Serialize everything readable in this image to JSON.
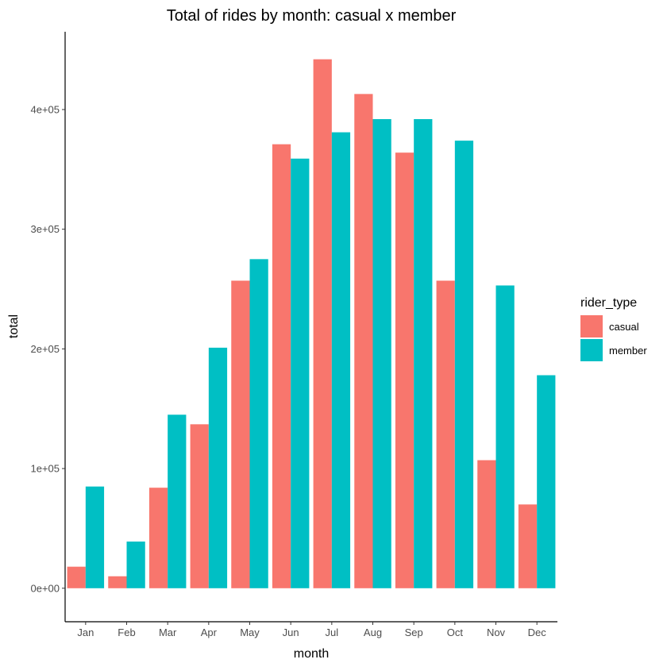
{
  "chart_data": {
    "type": "bar",
    "title": "Total of rides by month: casual x member",
    "xlabel": "month",
    "ylabel": "total",
    "categories": [
      "Jan",
      "Feb",
      "Mar",
      "Apr",
      "May",
      "Jun",
      "Jul",
      "Aug",
      "Sep",
      "Oct",
      "Nov",
      "Dec"
    ],
    "series": [
      {
        "name": "casual",
        "color": "#F8766D",
        "values": [
          18000,
          10000,
          84000,
          137000,
          257000,
          371000,
          442000,
          413000,
          364000,
          257000,
          107000,
          70000
        ]
      },
      {
        "name": "member",
        "color": "#00BFC4",
        "values": [
          85000,
          39000,
          145000,
          201000,
          275000,
          359000,
          381000,
          392000,
          392000,
          374000,
          253000,
          178000
        ]
      }
    ],
    "yticks": [
      0,
      100000,
      200000,
      300000,
      400000
    ],
    "ytick_labels": [
      "0e+00",
      "1e+05",
      "2e+05",
      "3e+05",
      "4e+05"
    ],
    "ylim": [
      -28000,
      465000
    ],
    "legend": {
      "title": "rider_type",
      "position": "right"
    },
    "grid": false
  }
}
